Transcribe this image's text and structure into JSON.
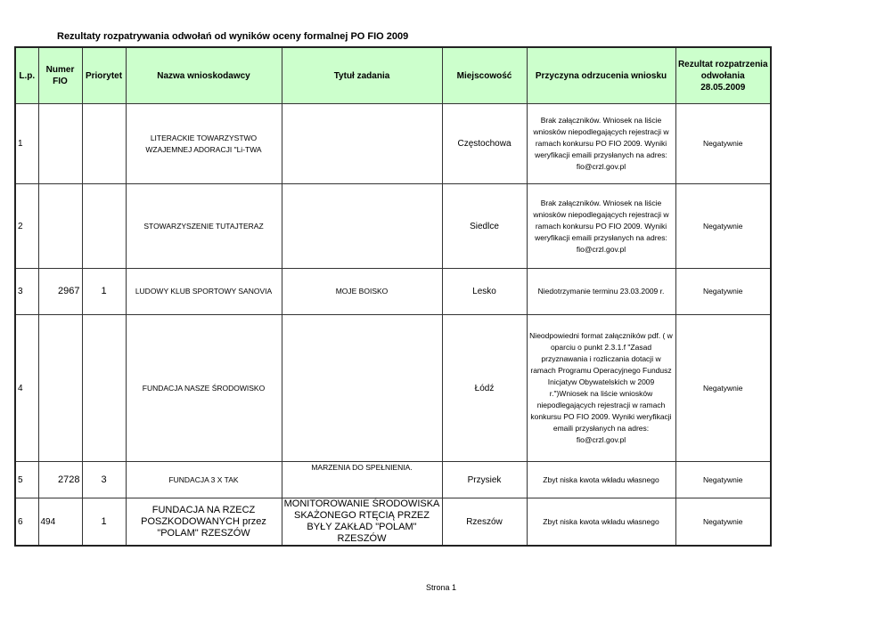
{
  "title": "Rezultaty rozpatrywania odwołań od wyników oceny formalnej PO FIO 2009",
  "headers": [
    "L.p.",
    "Numer FIO",
    "Priorytet",
    "Nazwa wnioskodawcy",
    "Tytuł zadania",
    "Miejscowość",
    "Przyczyna odrzucenia wniosku",
    "Rezultat rozpatrzenia odwołania 28.05.2009"
  ],
  "rows": [
    {
      "lp": "1",
      "fio": "",
      "priorytet": "",
      "nazwa": "LITERACKIE TOWARZYSTWO WZAJEMNEJ ADORACJI \"Li-TWA",
      "tytul": "",
      "miejscowosc": "Częstochowa",
      "przyczyna": "Brak załączników. Wniosek na liście wniosków niepodlegających rejestracji w ramach konkursu PO FIO 2009. Wyniki weryfikacji emaili przysłanych na adres: fio@crzl.gov.pl",
      "rezultat": "Negatywnie"
    },
    {
      "lp": "2",
      "fio": "",
      "priorytet": "",
      "nazwa": "STOWARZYSZENIE TUTAJTERAZ",
      "tytul": "",
      "miejscowosc": "Siedlce",
      "przyczyna": "Brak załączników. Wniosek na liście wniosków niepodlegających rejestracji w ramach konkursu PO FIO 2009. Wyniki weryfikacji emaili przysłanych na adres: fio@crzl.gov.pl",
      "rezultat": "Negatywnie"
    },
    {
      "lp": "3",
      "fio": "2967",
      "priorytet": "1",
      "nazwa": "LUDOWY KLUB SPORTOWY SANOVIA",
      "tytul": "MOJE BOISKO",
      "miejscowosc": "Lesko",
      "przyczyna": "Niedotrzymanie terminu 23.03.2009 r.",
      "rezultat": "Negatywnie"
    },
    {
      "lp": "4",
      "fio": "",
      "priorytet": "",
      "nazwa": "FUNDACJA NASZE ŚRODOWISKO",
      "tytul": "",
      "miejscowosc": "Łódź",
      "przyczyna": "Nieodpowiedni format załączników pdf. ( w oparciu o punkt 2.3.1.f  \"Zasad przyznawania i rozliczania dotacji w ramach Programu Operacyjnego Fundusz Inicjatyw Obywatelskich w 2009 r.\")Wniosek na liście wniosków niepodlegających rejestracji w ramach konkursu PO FIO 2009. Wyniki weryfikacji emaili przysłanych na adres: fio@crzl.gov.pl",
      "rezultat": "Negatywnie"
    },
    {
      "lp": "5",
      "fio": "2728",
      "priorytet": "3",
      "nazwa": "FUNDACJA 3 X TAK",
      "tytul": "MARZENIA DO SPEŁNIENIA.",
      "miejscowosc": "Przysiek",
      "przyczyna": "Zbyt niska kwota wkładu własnego",
      "rezultat": "Negatywnie"
    },
    {
      "lp": "6",
      "fio": "494",
      "priorytet": "1",
      "nazwa": "FUNDACJA NA RZECZ POSZKODOWANYCH przez \"POLAM\" RZESZÓW",
      "tytul": "MONITOROWANIE ŚRODOWISKA SKAŻONEGO RTĘCIĄ PRZEZ BYŁY ZAKŁAD \"POLAM\" RZESZÓW",
      "miejscowosc": "Rzeszów",
      "przyczyna": "Zbyt niska kwota wkładu własnego",
      "rezultat": "Negatywnie"
    }
  ],
  "footer": "Strona 1"
}
